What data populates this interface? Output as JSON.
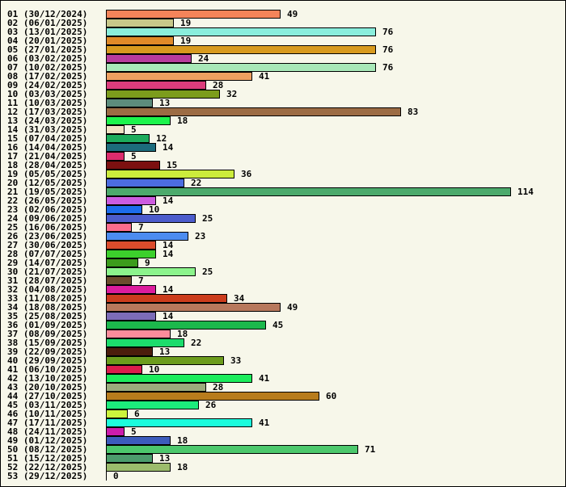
{
  "chart_data": {
    "type": "bar",
    "orientation": "horizontal",
    "title": "",
    "xlabel": "",
    "ylabel": "",
    "xlim": [
      0,
      114
    ],
    "grid": false,
    "legend": "none",
    "data_labels": true,
    "background": "#f7f7ea",
    "categories": [
      "01 (30/12/2024)",
      "02 (06/01/2025)",
      "03 (13/01/2025)",
      "04 (20/01/2025)",
      "05 (27/01/2025)",
      "06 (03/02/2025)",
      "07 (10/02/2025)",
      "08 (17/02/2025)",
      "09 (24/02/2025)",
      "10 (03/03/2025)",
      "11 (10/03/2025)",
      "12 (17/03/2025)",
      "13 (24/03/2025)",
      "14 (31/03/2025)",
      "15 (07/04/2025)",
      "16 (14/04/2025)",
      "17 (21/04/2025)",
      "18 (28/04/2025)",
      "19 (05/05/2025)",
      "20 (12/05/2025)",
      "21 (19/05/2025)",
      "22 (26/05/2025)",
      "23 (02/06/2025)",
      "24 (09/06/2025)",
      "25 (16/06/2025)",
      "26 (23/06/2025)",
      "27 (30/06/2025)",
      "28 (07/07/2025)",
      "29 (14/07/2025)",
      "30 (21/07/2025)",
      "31 (28/07/2025)",
      "32 (04/08/2025)",
      "33 (11/08/2025)",
      "34 (18/08/2025)",
      "35 (25/08/2025)",
      "36 (01/09/2025)",
      "37 (08/09/2025)",
      "38 (15/09/2025)",
      "39 (22/09/2025)",
      "40 (29/09/2025)",
      "41 (06/10/2025)",
      "42 (13/10/2025)",
      "43 (20/10/2025)",
      "44 (27/10/2025)",
      "45 (03/11/2025)",
      "46 (10/11/2025)",
      "47 (17/11/2025)",
      "48 (24/11/2025)",
      "49 (01/12/2025)",
      "50 (08/12/2025)",
      "51 (15/12/2025)",
      "52 (22/12/2025)",
      "53 (29/12/2025)"
    ],
    "values": [
      49,
      19,
      76,
      19,
      76,
      24,
      76,
      41,
      28,
      32,
      13,
      83,
      18,
      5,
      12,
      14,
      5,
      15,
      36,
      22,
      114,
      14,
      10,
      25,
      7,
      23,
      14,
      14,
      9,
      25,
      7,
      14,
      34,
      49,
      14,
      45,
      18,
      22,
      13,
      33,
      10,
      41,
      28,
      60,
      26,
      6,
      41,
      5,
      18,
      71,
      13,
      18,
      0
    ],
    "colors": [
      "#f4845a",
      "#c8c88a",
      "#8aeedc",
      "#e08a28",
      "#d89a1e",
      "#b83c9c",
      "#a8e8b8",
      "#eea060",
      "#dc3c7c",
      "#7c9c1c",
      "#5c8c7c",
      "#9c6c44",
      "#1cf44c",
      "#f0e2c4",
      "#1cac5c",
      "#1c6c7c",
      "#dc2c6c",
      "#7c1010",
      "#ccec3c",
      "#4c6ce0",
      "#4caa6c",
      "#cc5ce0",
      "#1c6cec",
      "#4c5ccc",
      "#fc6c8c",
      "#4c8cf0",
      "#dc4c2c",
      "#3cd02c",
      "#3c9c1c",
      "#8cf48c",
      "#6c4c2c",
      "#dc1c9c",
      "#cc3c1c",
      "#b8785c",
      "#7c6cb8",
      "#1cb84c",
      "#fc8c9c",
      "#1cdc6c",
      "#4c1c0c",
      "#6c9c1c",
      "#dc1c4c",
      "#1cec5c",
      "#9cac7c",
      "#b87c1c",
      "#1cec7c",
      "#ccf43c",
      "#1cfcdc",
      "#cc1cac",
      "#3c5cbc",
      "#4cc86c",
      "#4c9c6c",
      "#9cbc6c",
      "#888888"
    ]
  }
}
